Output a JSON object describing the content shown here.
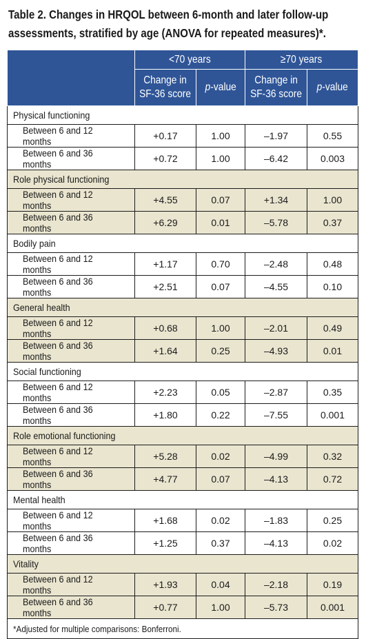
{
  "title": {
    "line1": "Table 2. Changes in HRQOL between 6-month and later follow-up",
    "line2": "assessments, stratified by age (ANOVA for repeated measures)*."
  },
  "header": {
    "group1": "<70 years",
    "group2": "≥70 years",
    "change_line1": "Change in",
    "change_line2": "SF-36 score",
    "pvalue_label": "p",
    "pvalue_suffix": "-value"
  },
  "rows": [
    {
      "category": "Physical functioning",
      "beige": false,
      "items": [
        {
          "label": "Between 6 and 12 months",
          "c1": "+0.17",
          "p1": "1.00",
          "c2": "–1.97",
          "p2": "0.55"
        },
        {
          "label": "Between 6 and 36 months",
          "c1": "+0.72",
          "p1": "1.00",
          "c2": "–6.42",
          "p2": "0.003"
        }
      ]
    },
    {
      "category": "Role physical functioning",
      "beige": true,
      "items": [
        {
          "label": "Between 6 and 12 months",
          "c1": "+4.55",
          "p1": "0.07",
          "c2": "+1.34",
          "p2": "1.00"
        },
        {
          "label": "Between 6 and 36 months",
          "c1": "+6.29",
          "p1": "0.01",
          "c2": "–5.78",
          "p2": "0.37"
        }
      ]
    },
    {
      "category": "Bodily pain",
      "beige": false,
      "items": [
        {
          "label": "Between 6 and 12 months",
          "c1": "+1.17",
          "p1": "0.70",
          "c2": "–2.48",
          "p2": "0.48"
        },
        {
          "label": "Between 6 and 36 months",
          "c1": "+2.51",
          "p1": "0.07",
          "c2": "–4.55",
          "p2": "0.10"
        }
      ]
    },
    {
      "category": "General health",
      "beige": true,
      "items": [
        {
          "label": "Between 6 and 12 months",
          "c1": "+0.68",
          "p1": "1.00",
          "c2": "–2.01",
          "p2": "0.49"
        },
        {
          "label": "Between 6 and 36 months",
          "c1": "+1.64",
          "p1": "0.25",
          "c2": "–4.93",
          "p2": "0.01"
        }
      ]
    },
    {
      "category": "Social functioning",
      "beige": false,
      "items": [
        {
          "label": "Between 6 and 12 months",
          "c1": "+2.23",
          "p1": "0.05",
          "c2": "–2.87",
          "p2": "0.35"
        },
        {
          "label": "Between 6 and 36 months",
          "c1": "+1.80",
          "p1": "0.22",
          "c2": "–7.55",
          "p2": "0.001"
        }
      ]
    },
    {
      "category": "Role emotional functioning",
      "beige": true,
      "items": [
        {
          "label": "Between 6 and 12 months",
          "c1": "+5.28",
          "p1": "0.02",
          "c2": "–4.99",
          "p2": "0.32"
        },
        {
          "label": "Between 6 and 36 months",
          "c1": "+4.77",
          "p1": "0.07",
          "c2": "–4.13",
          "p2": "0.72"
        }
      ]
    },
    {
      "category": "Mental health",
      "beige": false,
      "items": [
        {
          "label": "Between 6 and 12 months",
          "c1": "+1.68",
          "p1": "0.02",
          "c2": "–1.83",
          "p2": "0.25"
        },
        {
          "label": "Between 6 and 36 months",
          "c1": "+1.25",
          "p1": "0.37",
          "c2": "–4.13",
          "p2": "0.02"
        }
      ]
    },
    {
      "category": "Vitality",
      "beige": true,
      "items": [
        {
          "label": "Between 6 and 12 months",
          "c1": "+1.93",
          "p1": "0.04",
          "c2": "–2.18",
          "p2": "0.19"
        },
        {
          "label": "Between 6 and 36 months",
          "c1": "+0.77",
          "p1": "1.00",
          "c2": "–5.73",
          "p2": "0.001"
        }
      ]
    }
  ],
  "footnote": "*Adjusted for multiple comparisons: Bonferroni."
}
